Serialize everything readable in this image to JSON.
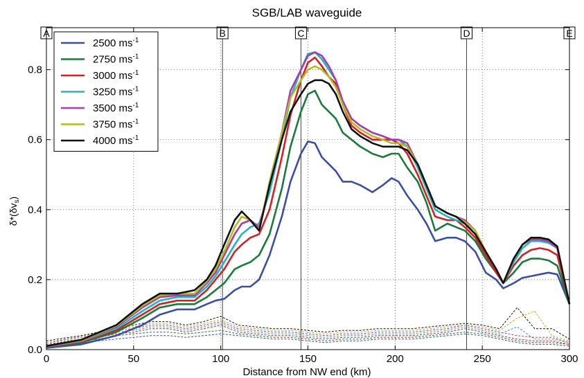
{
  "chart_data": {
    "type": "line",
    "title": "SGB/LAB waveguide",
    "xlabel": "Distance from NW end (km)",
    "ylabel": "δ*(δv",
    "ylabel_sub": "s",
    "ylabel_close": ")",
    "xlim": [
      0,
      300
    ],
    "ylim": [
      0,
      0.92
    ],
    "xticks": [
      0,
      50,
      100,
      150,
      200,
      250,
      300
    ],
    "yticks": [
      0.0,
      0.2,
      0.4,
      0.6,
      0.8
    ],
    "ytick_labels": [
      "0.0",
      "0.2",
      "0.4",
      "0.6",
      "0.8"
    ],
    "grid": true,
    "legend_position": "top-left",
    "unit_text": "ms",
    "unit_exp": "-1",
    "markers": [
      {
        "label": "A",
        "x": 0
      },
      {
        "label": "B",
        "x": 101
      },
      {
        "label": "C",
        "x": 146
      },
      {
        "label": "D",
        "x": 241
      },
      {
        "label": "E",
        "x": 300
      }
    ],
    "series": [
      {
        "name": "2500",
        "color": "#3a4ea5",
        "x": [
          0,
          20,
          40,
          55,
          65,
          75,
          85,
          92,
          97,
          102,
          108,
          112,
          117,
          122,
          128,
          135,
          140,
          146,
          150,
          154,
          158,
          162,
          166,
          170,
          175,
          180,
          187,
          193,
          198,
          202,
          207,
          213,
          218,
          223,
          230,
          235,
          240,
          246,
          252,
          258,
          262,
          268,
          273,
          278,
          283,
          288,
          293,
          300
        ],
        "y": [
          0.005,
          0.015,
          0.04,
          0.07,
          0.1,
          0.115,
          0.115,
          0.13,
          0.14,
          0.145,
          0.17,
          0.18,
          0.18,
          0.2,
          0.27,
          0.38,
          0.48,
          0.56,
          0.595,
          0.59,
          0.55,
          0.53,
          0.51,
          0.48,
          0.48,
          0.47,
          0.45,
          0.47,
          0.49,
          0.48,
          0.44,
          0.4,
          0.36,
          0.31,
          0.32,
          0.32,
          0.31,
          0.28,
          0.22,
          0.2,
          0.175,
          0.19,
          0.205,
          0.21,
          0.215,
          0.22,
          0.215,
          0.13
        ]
      },
      {
        "name": "2750",
        "color": "#1a7a3a",
        "x": [
          0,
          20,
          40,
          55,
          65,
          75,
          85,
          92,
          97,
          102,
          108,
          112,
          117,
          122,
          128,
          135,
          140,
          146,
          150,
          154,
          158,
          162,
          166,
          170,
          175,
          180,
          187,
          193,
          198,
          202,
          207,
          213,
          218,
          223,
          230,
          235,
          240,
          246,
          252,
          258,
          262,
          268,
          273,
          278,
          283,
          288,
          293,
          300
        ],
        "y": [
          0.008,
          0.02,
          0.05,
          0.09,
          0.12,
          0.13,
          0.13,
          0.15,
          0.17,
          0.19,
          0.23,
          0.24,
          0.25,
          0.27,
          0.33,
          0.46,
          0.58,
          0.68,
          0.73,
          0.74,
          0.7,
          0.68,
          0.66,
          0.62,
          0.6,
          0.58,
          0.56,
          0.55,
          0.56,
          0.56,
          0.52,
          0.48,
          0.42,
          0.34,
          0.36,
          0.35,
          0.34,
          0.31,
          0.26,
          0.22,
          0.19,
          0.22,
          0.25,
          0.26,
          0.26,
          0.255,
          0.24,
          0.13
        ]
      },
      {
        "name": "3000",
        "color": "#d62020",
        "x": [
          0,
          20,
          40,
          55,
          65,
          75,
          85,
          92,
          97,
          102,
          108,
          112,
          117,
          122,
          128,
          135,
          140,
          146,
          150,
          154,
          158,
          162,
          166,
          170,
          175,
          180,
          187,
          193,
          198,
          202,
          207,
          213,
          218,
          223,
          230,
          235,
          240,
          246,
          252,
          258,
          262,
          268,
          273,
          278,
          283,
          288,
          293,
          300
        ],
        "y": [
          0.008,
          0.022,
          0.055,
          0.1,
          0.13,
          0.14,
          0.14,
          0.17,
          0.2,
          0.23,
          0.28,
          0.3,
          0.32,
          0.33,
          0.4,
          0.55,
          0.67,
          0.77,
          0.82,
          0.835,
          0.81,
          0.78,
          0.76,
          0.7,
          0.64,
          0.62,
          0.6,
          0.6,
          0.6,
          0.59,
          0.56,
          0.5,
          0.44,
          0.38,
          0.37,
          0.37,
          0.35,
          0.32,
          0.27,
          0.22,
          0.19,
          0.24,
          0.27,
          0.285,
          0.29,
          0.285,
          0.27,
          0.13
        ]
      },
      {
        "name": "3250",
        "color": "#22b5c0",
        "x": [
          0,
          20,
          40,
          55,
          65,
          75,
          85,
          92,
          97,
          102,
          108,
          112,
          117,
          122,
          128,
          135,
          140,
          146,
          150,
          154,
          158,
          162,
          166,
          170,
          175,
          180,
          187,
          193,
          198,
          202,
          207,
          213,
          218,
          223,
          230,
          235,
          240,
          246,
          252,
          258,
          262,
          268,
          273,
          278,
          283,
          288,
          293,
          300
        ],
        "y": [
          0.009,
          0.024,
          0.06,
          0.11,
          0.14,
          0.15,
          0.15,
          0.18,
          0.21,
          0.25,
          0.3,
          0.33,
          0.35,
          0.36,
          0.45,
          0.6,
          0.72,
          0.8,
          0.845,
          0.85,
          0.83,
          0.8,
          0.77,
          0.71,
          0.66,
          0.64,
          0.62,
          0.61,
          0.6,
          0.6,
          0.58,
          0.52,
          0.46,
          0.4,
          0.38,
          0.37,
          0.36,
          0.33,
          0.28,
          0.23,
          0.19,
          0.25,
          0.29,
          0.31,
          0.31,
          0.305,
          0.29,
          0.13
        ]
      },
      {
        "name": "3500",
        "color": "#a83cb0",
        "x": [
          0,
          20,
          40,
          55,
          65,
          75,
          85,
          92,
          97,
          102,
          108,
          112,
          117,
          122,
          128,
          135,
          140,
          146,
          150,
          154,
          158,
          162,
          166,
          170,
          175,
          180,
          187,
          193,
          198,
          202,
          207,
          213,
          218,
          223,
          230,
          235,
          240,
          246,
          252,
          258,
          262,
          268,
          273,
          278,
          283,
          288,
          293,
          300
        ],
        "y": [
          0.01,
          0.025,
          0.065,
          0.12,
          0.15,
          0.155,
          0.155,
          0.19,
          0.22,
          0.27,
          0.33,
          0.36,
          0.37,
          0.35,
          0.47,
          0.62,
          0.74,
          0.8,
          0.84,
          0.85,
          0.84,
          0.81,
          0.77,
          0.71,
          0.66,
          0.64,
          0.62,
          0.61,
          0.6,
          0.6,
          0.59,
          0.53,
          0.47,
          0.41,
          0.39,
          0.38,
          0.37,
          0.34,
          0.28,
          0.23,
          0.19,
          0.26,
          0.3,
          0.315,
          0.315,
          0.31,
          0.29,
          0.13
        ]
      },
      {
        "name": "3750",
        "color": "#b8b820",
        "x": [
          0,
          20,
          40,
          55,
          65,
          75,
          85,
          92,
          97,
          102,
          108,
          112,
          117,
          122,
          128,
          135,
          140,
          146,
          150,
          154,
          158,
          162,
          166,
          170,
          175,
          180,
          187,
          193,
          198,
          202,
          207,
          213,
          218,
          223,
          230,
          235,
          240,
          246,
          252,
          258,
          262,
          268,
          273,
          278,
          283,
          288,
          293,
          300
        ],
        "y": [
          0.01,
          0.026,
          0.068,
          0.125,
          0.155,
          0.16,
          0.16,
          0.195,
          0.23,
          0.28,
          0.35,
          0.38,
          0.37,
          0.34,
          0.48,
          0.62,
          0.72,
          0.77,
          0.8,
          0.81,
          0.8,
          0.78,
          0.75,
          0.7,
          0.65,
          0.63,
          0.61,
          0.6,
          0.59,
          0.59,
          0.58,
          0.53,
          0.47,
          0.41,
          0.39,
          0.38,
          0.365,
          0.34,
          0.28,
          0.23,
          0.19,
          0.26,
          0.3,
          0.32,
          0.32,
          0.315,
          0.295,
          0.13
        ]
      },
      {
        "name": "4000",
        "color": "#111111",
        "x": [
          0,
          20,
          40,
          55,
          65,
          75,
          85,
          92,
          97,
          102,
          108,
          112,
          117,
          122,
          128,
          135,
          140,
          146,
          150,
          154,
          158,
          162,
          166,
          170,
          175,
          180,
          187,
          193,
          198,
          202,
          207,
          213,
          218,
          223,
          230,
          235,
          240,
          246,
          252,
          258,
          262,
          268,
          273,
          278,
          283,
          288,
          293,
          300
        ],
        "y": [
          0.01,
          0.028,
          0.07,
          0.13,
          0.16,
          0.16,
          0.17,
          0.2,
          0.24,
          0.3,
          0.37,
          0.395,
          0.37,
          0.34,
          0.47,
          0.6,
          0.68,
          0.73,
          0.76,
          0.77,
          0.77,
          0.76,
          0.73,
          0.68,
          0.63,
          0.61,
          0.59,
          0.58,
          0.58,
          0.58,
          0.57,
          0.53,
          0.47,
          0.41,
          0.39,
          0.38,
          0.36,
          0.33,
          0.28,
          0.23,
          0.19,
          0.26,
          0.3,
          0.32,
          0.32,
          0.315,
          0.295,
          0.13
        ]
      }
    ],
    "error_series": [
      {
        "color": "#3a4ea5",
        "x": [
          0,
          10,
          20,
          30,
          40,
          50,
          60,
          70,
          80,
          90,
          100,
          110,
          120,
          130,
          140,
          150,
          160,
          170,
          180,
          190,
          200,
          210,
          220,
          230,
          240,
          250,
          260,
          270,
          280,
          290,
          300
        ],
        "y": [
          0.01,
          0.015,
          0.02,
          0.025,
          0.03,
          0.035,
          0.04,
          0.04,
          0.035,
          0.04,
          0.045,
          0.04,
          0.035,
          0.03,
          0.03,
          0.025,
          0.02,
          0.025,
          0.025,
          0.03,
          0.03,
          0.03,
          0.035,
          0.04,
          0.045,
          0.04,
          0.03,
          0.02,
          0.015,
          0.015,
          0.01
        ]
      },
      {
        "color": "#1a7a3a",
        "x": [
          0,
          10,
          20,
          30,
          40,
          50,
          60,
          70,
          80,
          90,
          100,
          110,
          120,
          130,
          140,
          150,
          160,
          170,
          180,
          190,
          200,
          210,
          220,
          230,
          240,
          250,
          260,
          270,
          280,
          290,
          300
        ],
        "y": [
          0.015,
          0.02,
          0.025,
          0.03,
          0.04,
          0.045,
          0.05,
          0.05,
          0.045,
          0.05,
          0.055,
          0.045,
          0.04,
          0.035,
          0.035,
          0.03,
          0.025,
          0.03,
          0.03,
          0.035,
          0.035,
          0.035,
          0.04,
          0.045,
          0.05,
          0.045,
          0.035,
          0.025,
          0.02,
          0.02,
          0.015
        ]
      },
      {
        "color": "#d62020",
        "x": [
          0,
          10,
          20,
          30,
          40,
          50,
          60,
          70,
          80,
          90,
          100,
          110,
          120,
          130,
          140,
          150,
          160,
          170,
          180,
          190,
          200,
          210,
          220,
          230,
          240,
          250,
          260,
          270,
          280,
          290,
          300
        ],
        "y": [
          0.015,
          0.022,
          0.03,
          0.035,
          0.045,
          0.05,
          0.06,
          0.06,
          0.05,
          0.06,
          0.07,
          0.05,
          0.045,
          0.04,
          0.04,
          0.035,
          0.03,
          0.035,
          0.035,
          0.04,
          0.04,
          0.04,
          0.045,
          0.05,
          0.06,
          0.05,
          0.04,
          0.03,
          0.025,
          0.025,
          0.015
        ]
      },
      {
        "color": "#22b5c0",
        "x": [
          0,
          10,
          20,
          30,
          40,
          50,
          60,
          70,
          80,
          90,
          100,
          110,
          120,
          130,
          140,
          150,
          160,
          170,
          180,
          190,
          200,
          210,
          220,
          230,
          240,
          250,
          260,
          270,
          280,
          290,
          300
        ],
        "y": [
          0.02,
          0.025,
          0.03,
          0.04,
          0.05,
          0.055,
          0.065,
          0.065,
          0.055,
          0.065,
          0.075,
          0.055,
          0.05,
          0.045,
          0.045,
          0.04,
          0.035,
          0.04,
          0.04,
          0.045,
          0.045,
          0.045,
          0.05,
          0.055,
          0.065,
          0.055,
          0.045,
          0.065,
          0.03,
          0.03,
          0.02
        ]
      },
      {
        "color": "#a83cb0",
        "x": [
          0,
          10,
          20,
          30,
          40,
          50,
          60,
          70,
          80,
          90,
          100,
          110,
          120,
          130,
          140,
          150,
          160,
          170,
          180,
          190,
          200,
          210,
          220,
          230,
          240,
          250,
          260,
          270,
          280,
          290,
          300
        ],
        "y": [
          0.02,
          0.028,
          0.035,
          0.045,
          0.055,
          0.06,
          0.07,
          0.07,
          0.06,
          0.07,
          0.08,
          0.06,
          0.055,
          0.05,
          0.05,
          0.045,
          0.04,
          0.045,
          0.045,
          0.05,
          0.05,
          0.05,
          0.055,
          0.06,
          0.07,
          0.06,
          0.05,
          0.04,
          0.035,
          0.035,
          0.02
        ]
      },
      {
        "color": "#b8b820",
        "x": [
          0,
          10,
          20,
          30,
          40,
          50,
          60,
          70,
          80,
          90,
          100,
          110,
          120,
          130,
          140,
          150,
          160,
          170,
          180,
          190,
          200,
          210,
          220,
          230,
          240,
          250,
          260,
          270,
          280,
          290,
          300
        ],
        "y": [
          0.02,
          0.03,
          0.038,
          0.048,
          0.058,
          0.065,
          0.075,
          0.075,
          0.065,
          0.075,
          0.085,
          0.065,
          0.06,
          0.055,
          0.055,
          0.05,
          0.045,
          0.05,
          0.05,
          0.055,
          0.055,
          0.055,
          0.06,
          0.065,
          0.07,
          0.065,
          0.055,
          0.09,
          0.11,
          0.04,
          0.025
        ]
      },
      {
        "color": "#111111",
        "x": [
          0,
          10,
          20,
          30,
          40,
          50,
          60,
          70,
          80,
          90,
          100,
          110,
          120,
          130,
          140,
          150,
          160,
          170,
          180,
          190,
          200,
          210,
          220,
          230,
          240,
          250,
          260,
          270,
          280,
          290,
          300
        ],
        "y": [
          0.025,
          0.033,
          0.04,
          0.05,
          0.06,
          0.07,
          0.08,
          0.08,
          0.07,
          0.08,
          0.095,
          0.07,
          0.065,
          0.06,
          0.06,
          0.055,
          0.05,
          0.055,
          0.055,
          0.06,
          0.06,
          0.06,
          0.065,
          0.07,
          0.075,
          0.07,
          0.06,
          0.12,
          0.06,
          0.06,
          0.03
        ]
      }
    ]
  }
}
